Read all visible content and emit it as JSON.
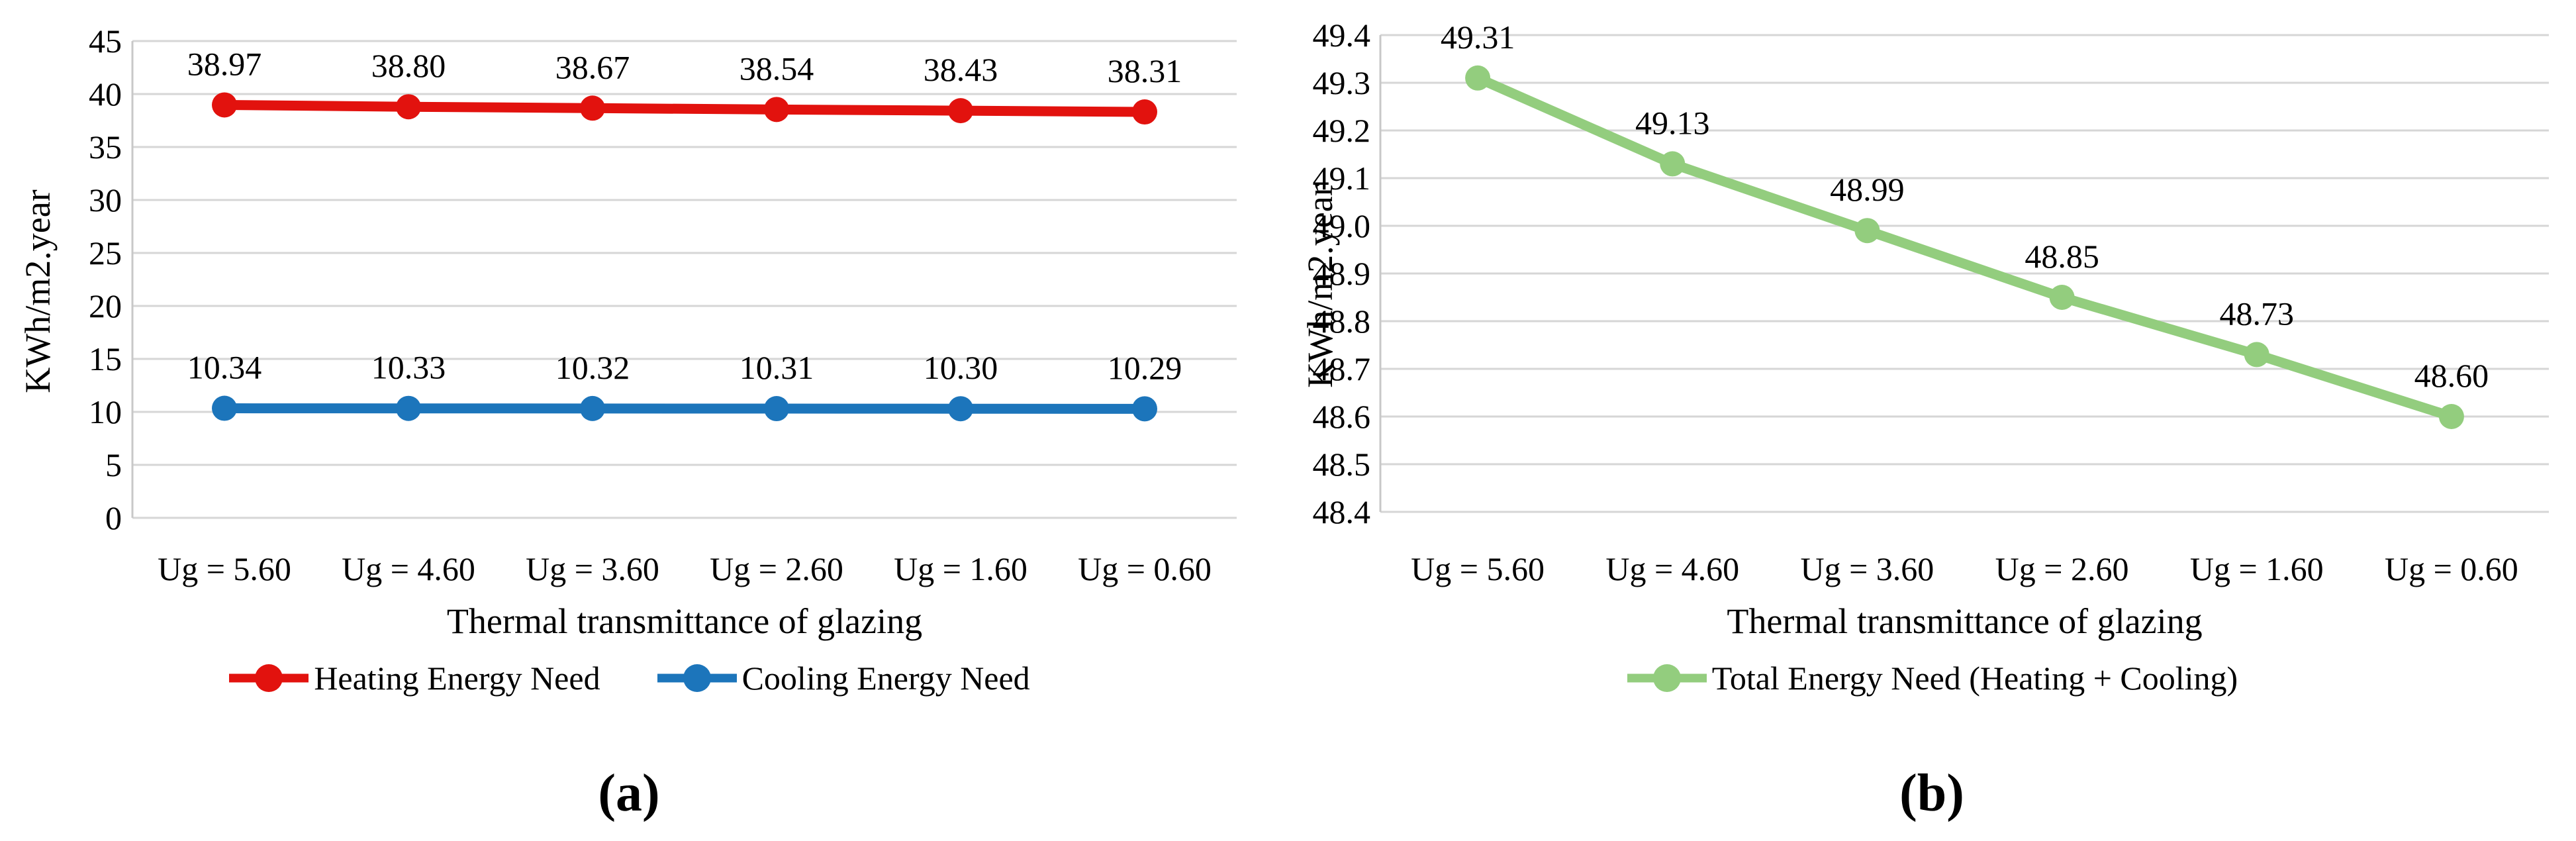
{
  "captions": {
    "a": "(a)",
    "b": "(b)"
  },
  "chart_data": [
    {
      "id": "a",
      "type": "line",
      "title": "",
      "categories": [
        "Ug = 5.60",
        "Ug = 4.60",
        "Ug = 3.60",
        "Ug = 2.60",
        "Ug = 1.60",
        "Ug = 0.60"
      ],
      "series": [
        {
          "name": "Heating Energy Need",
          "color": "#E2120E",
          "values": [
            38.97,
            38.8,
            38.67,
            38.54,
            38.43,
            38.31
          ]
        },
        {
          "name": "Cooling Energy Need",
          "color": "#1C75BB",
          "values": [
            10.34,
            10.33,
            10.32,
            10.31,
            10.3,
            10.29
          ]
        }
      ],
      "xlabel": "Thermal transmittance of glazing",
      "ylabel": "KWh/m2.year",
      "ylim": [
        0,
        45
      ],
      "ytick_step": 5,
      "ytick_decimals": 0,
      "data_label_decimals": 2,
      "grid": true,
      "legend_position": "bottom"
    },
    {
      "id": "b",
      "type": "line",
      "title": "",
      "categories": [
        "Ug = 5.60",
        "Ug = 4.60",
        "Ug = 3.60",
        "Ug = 2.60",
        "Ug = 1.60",
        "Ug = 0.60"
      ],
      "series": [
        {
          "name": "Total Energy Need (Heating + Cooling)",
          "color": "#93CD7E",
          "values": [
            49.31,
            49.13,
            48.99,
            48.85,
            48.73,
            48.6
          ]
        }
      ],
      "xlabel": "Thermal transmittance of glazing",
      "ylabel": "KWh/m2.year",
      "ylim": [
        48.4,
        49.4
      ],
      "ytick_step": 0.1,
      "ytick_decimals": 1,
      "data_label_decimals": 2,
      "grid": true,
      "legend_position": "bottom"
    }
  ],
  "style": {
    "gridline_color": "#D6D6D6",
    "axis_line_color": "#C8C8C8",
    "text_color": "#000000"
  }
}
